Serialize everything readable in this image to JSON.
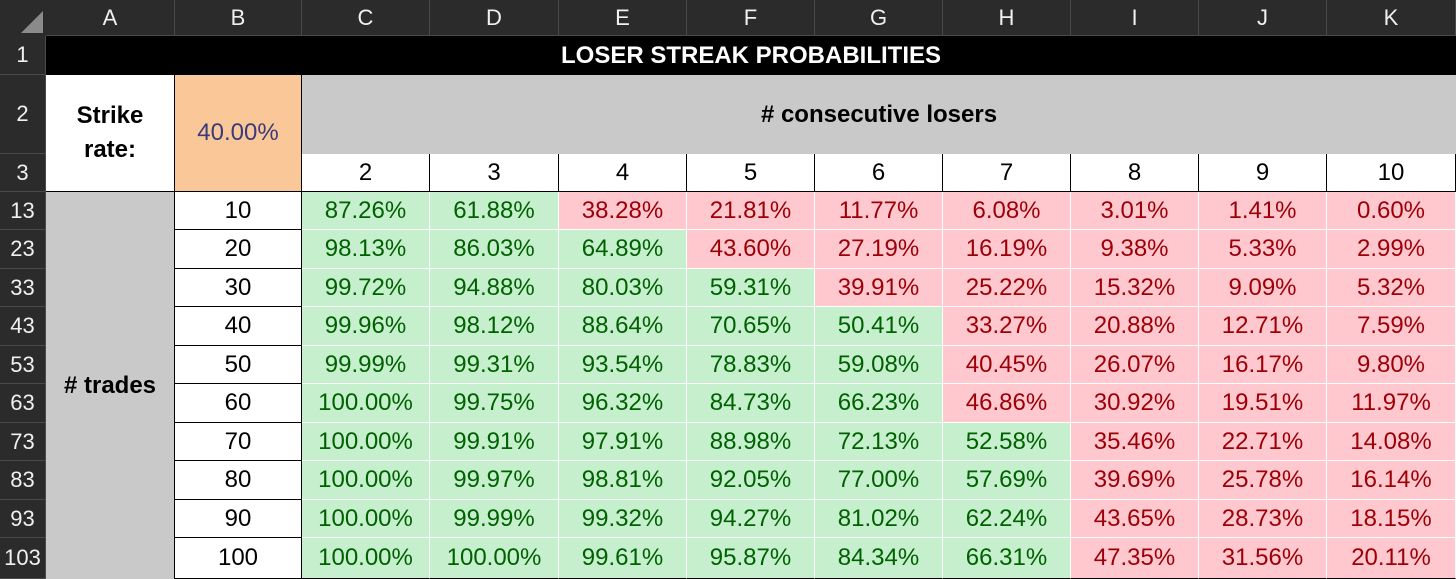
{
  "columns": [
    "A",
    "B",
    "C",
    "D",
    "E",
    "F",
    "G",
    "H",
    "I",
    "J",
    "K"
  ],
  "rows": [
    "1",
    "2",
    "3",
    "13",
    "23",
    "33",
    "43",
    "53",
    "63",
    "73",
    "83",
    "93",
    "103"
  ],
  "title": "LOSER STREAK PROBABILITIES",
  "strike_label": "Strike rate:",
  "strike_rate": "40.00%",
  "consec_label": "# consecutive losers",
  "consec_values": [
    "2",
    "3",
    "4",
    "5",
    "6",
    "7",
    "8",
    "9",
    "10"
  ],
  "trades_label": "# trades",
  "trades_values": [
    "10",
    "20",
    "30",
    "40",
    "50",
    "60",
    "70",
    "80",
    "90",
    "100"
  ],
  "table": [
    [
      "87.26%",
      "61.88%",
      "38.28%",
      "21.81%",
      "11.77%",
      "6.08%",
      "3.01%",
      "1.41%",
      "0.60%"
    ],
    [
      "98.13%",
      "86.03%",
      "64.89%",
      "43.60%",
      "27.19%",
      "16.19%",
      "9.38%",
      "5.33%",
      "2.99%"
    ],
    [
      "99.72%",
      "94.88%",
      "80.03%",
      "59.31%",
      "39.91%",
      "25.22%",
      "15.32%",
      "9.09%",
      "5.32%"
    ],
    [
      "99.96%",
      "98.12%",
      "88.64%",
      "70.65%",
      "50.41%",
      "33.27%",
      "20.88%",
      "12.71%",
      "7.59%"
    ],
    [
      "99.99%",
      "99.31%",
      "93.54%",
      "78.83%",
      "59.08%",
      "40.45%",
      "26.07%",
      "16.17%",
      "9.80%"
    ],
    [
      "100.00%",
      "99.75%",
      "96.32%",
      "84.73%",
      "66.23%",
      "46.86%",
      "30.92%",
      "19.51%",
      "11.97%"
    ],
    [
      "100.00%",
      "99.91%",
      "97.91%",
      "88.98%",
      "72.13%",
      "52.58%",
      "35.46%",
      "22.71%",
      "14.08%"
    ],
    [
      "100.00%",
      "99.97%",
      "98.81%",
      "92.05%",
      "77.00%",
      "57.69%",
      "39.69%",
      "25.78%",
      "16.14%"
    ],
    [
      "100.00%",
      "99.99%",
      "99.32%",
      "94.27%",
      "81.02%",
      "62.24%",
      "43.65%",
      "28.73%",
      "18.15%"
    ],
    [
      "100.00%",
      "100.00%",
      "99.61%",
      "95.87%",
      "84.34%",
      "66.31%",
      "47.35%",
      "31.56%",
      "20.11%"
    ]
  ],
  "colors": {
    "good_fill": "#c6efce",
    "good_text": "#006100",
    "bad_fill": "#ffc7ce",
    "bad_text": "#9c0006",
    "highlight_ring": "#1ea0dc"
  },
  "highlighted_cell": "78.83%"
}
